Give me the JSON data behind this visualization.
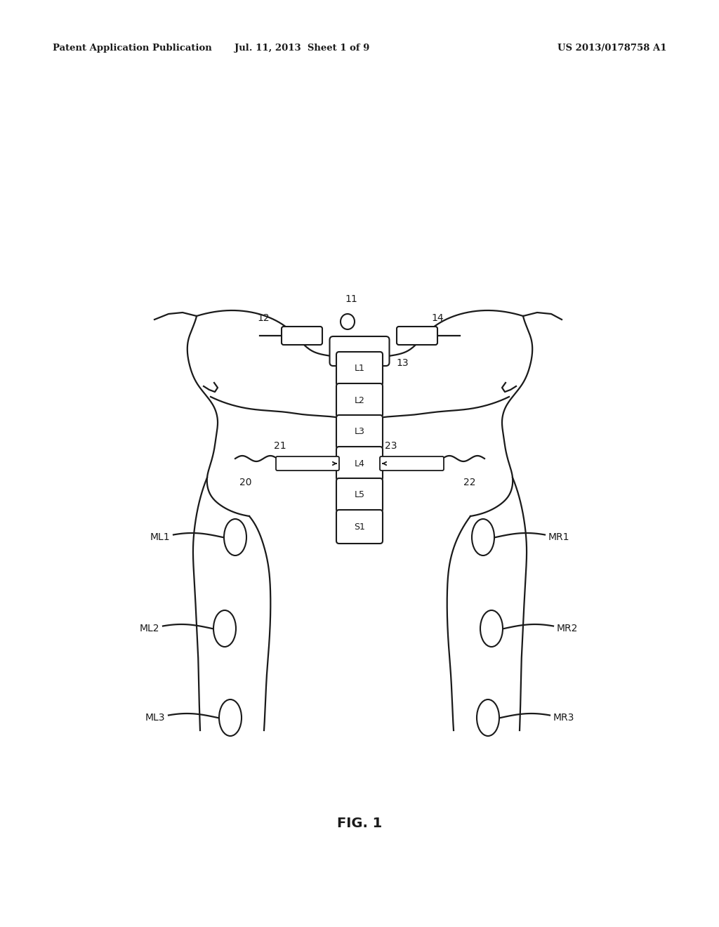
{
  "title": "FIG. 1",
  "header_left": "Patent Application Publication",
  "header_center": "Jul. 11, 2013  Sheet 1 of 9",
  "header_right": "US 2013/0178758 A1",
  "bg_color": "#ffffff",
  "line_color": "#1a1a1a",
  "vertebrae": [
    "L1",
    "L2",
    "L3",
    "L4",
    "L5",
    "S1"
  ],
  "label_11": "11",
  "label_12": "12",
  "label_13": "13",
  "label_14": "14",
  "label_20": "20",
  "label_21": "21",
  "label_22": "22",
  "label_23": "23",
  "left_muscle_labels": [
    "ML1",
    "ML2",
    "ML3"
  ],
  "right_muscle_labels": [
    "MR1",
    "MR2",
    "MR3"
  ]
}
